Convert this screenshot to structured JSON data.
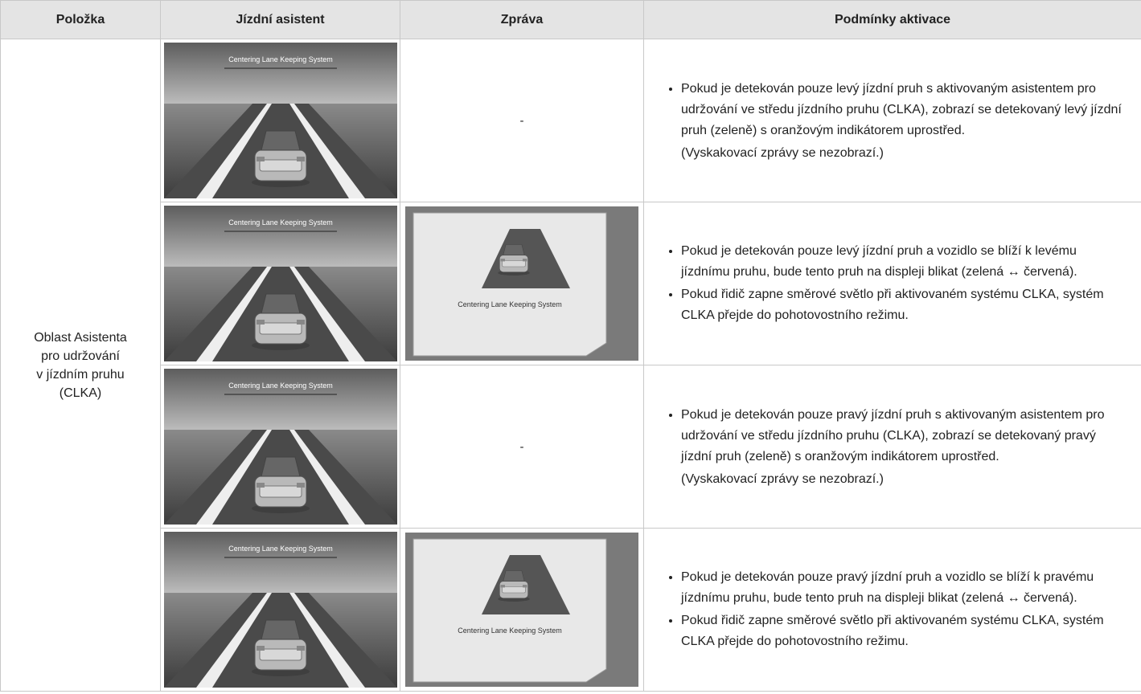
{
  "table": {
    "headers": [
      "Položka",
      "Jízdní asistent",
      "Zpráva",
      "Podmínky aktivace"
    ],
    "item_lines": [
      "Oblast Asistenta",
      "pro udržování",
      "v jízdním pruhu",
      "(CLKA)"
    ],
    "rows": [
      {
        "assistant_caption": "Centering Lane Keeping System",
        "message": "-",
        "conditions": [
          "Pokud je detekován pouze levý jízdní pruh s aktivovaným asistentem pro udržování ve středu jízdního pruhu (CLKA), zobrazí se detekovaný levý jízdní pruh (zeleně) s oranžovým indikátorem uprostřed."
        ],
        "note": "(Vyskakovací zprávy se nezobrazí.)"
      },
      {
        "assistant_caption": "Centering Lane Keeping System",
        "message_caption": "Centering Lane Keeping System",
        "conditions": [
          "Pokud je detekován pouze levý jízdní pruh a vozidlo se blíží k levému jízdnímu pruhu, bude tento pruh na displeji blikat (zelená ↔ červená).",
          "Pokud řidič zapne směrové světlo při aktivovaném systému CLKA, systém CLKA přejde do pohotovostního režimu."
        ]
      },
      {
        "assistant_caption": "Centering Lane Keeping System",
        "message": "-",
        "conditions": [
          "Pokud je detekován pouze pravý jízdní pruh s aktivovaným asistentem pro udržování ve středu jízdního pruhu (CLKA), zobrazí se detekovaný pravý jízdní pruh (zeleně) s oranžovým indikátorem uprostřed."
        ],
        "note": "(Vyskakovací zprávy se nezobrazí.)"
      },
      {
        "assistant_caption": "Centering Lane Keeping System",
        "message_caption": "Centering Lane Keeping System",
        "conditions": [
          "Pokud je detekován pouze pravý jízdní pruh a vozidlo se blíží k pravému jízdnímu pruhu, bude tento pruh na displeji blikat (zelená ↔ červená).",
          "Pokud řidič zapne směrové světlo při aktivovaném systému CLKA, systém CLKA přejde do pohotovostního režimu."
        ]
      }
    ]
  }
}
